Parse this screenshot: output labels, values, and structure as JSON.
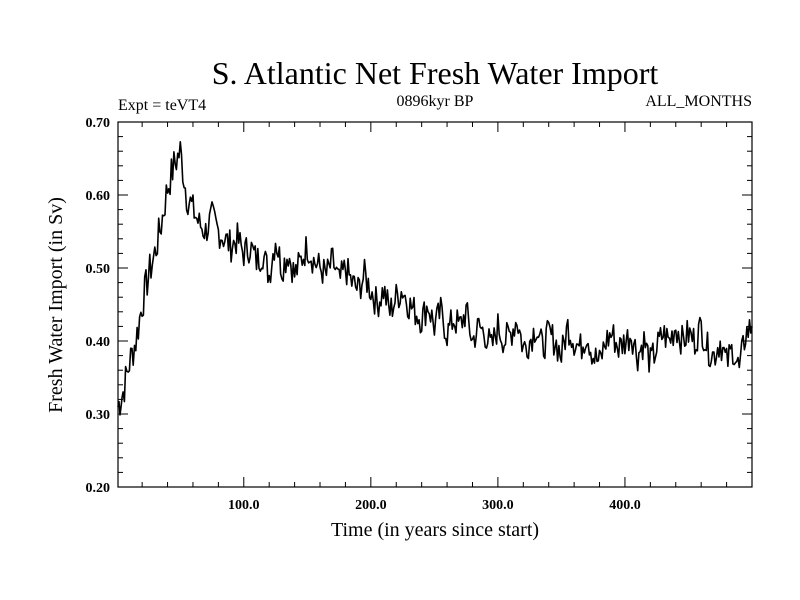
{
  "chart_data": {
    "type": "line",
    "title": "S. Atlantic Net Fresh Water Import",
    "subtitle_left": "Expt = teVT4",
    "subtitle_center": "0896kyr BP",
    "subtitle_right": "ALL_MONTHS",
    "xlabel": "Time (in years since start)",
    "ylabel": "Fresh Water Import (in Sv)",
    "xlim": [
      1,
      500
    ],
    "ylim": [
      0.2,
      0.7
    ],
    "xticks": [
      100,
      200,
      300,
      400
    ],
    "xtick_labels": [
      "100.0",
      "200.0",
      "300.0",
      "400.0"
    ],
    "yticks": [
      0.2,
      0.3,
      0.4,
      0.5,
      0.6,
      0.7
    ],
    "ytick_labels": [
      "0.20",
      "0.30",
      "0.40",
      "0.50",
      "0.60",
      "0.70"
    ],
    "series": [
      {
        "name": "Net Fresh Water Import",
        "x": [
          1,
          5,
          10,
          15,
          20,
          25,
          30,
          35,
          40,
          45,
          50,
          55,
          60,
          65,
          70,
          75,
          80,
          85,
          90,
          95,
          100,
          105,
          110,
          115,
          120,
          125,
          130,
          135,
          140,
          145,
          150,
          155,
          160,
          165,
          170,
          175,
          180,
          185,
          190,
          195,
          200,
          205,
          210,
          215,
          220,
          225,
          230,
          235,
          240,
          245,
          250,
          255,
          260,
          265,
          270,
          275,
          280,
          285,
          290,
          295,
          300,
          305,
          310,
          315,
          320,
          325,
          330,
          335,
          340,
          345,
          350,
          355,
          360,
          365,
          370,
          375,
          380,
          385,
          390,
          395,
          400,
          405,
          410,
          415,
          420,
          425,
          430,
          435,
          440,
          445,
          450,
          455,
          460,
          465,
          470,
          475,
          480,
          485,
          490,
          495,
          500
        ],
        "values": [
          0.31,
          0.33,
          0.37,
          0.4,
          0.45,
          0.49,
          0.52,
          0.56,
          0.61,
          0.64,
          0.66,
          0.6,
          0.58,
          0.56,
          0.55,
          0.57,
          0.55,
          0.54,
          0.53,
          0.54,
          0.52,
          0.53,
          0.51,
          0.52,
          0.49,
          0.54,
          0.5,
          0.52,
          0.49,
          0.51,
          0.53,
          0.51,
          0.5,
          0.49,
          0.51,
          0.48,
          0.5,
          0.48,
          0.47,
          0.49,
          0.47,
          0.45,
          0.47,
          0.44,
          0.46,
          0.47,
          0.45,
          0.44,
          0.43,
          0.45,
          0.42,
          0.44,
          0.41,
          0.43,
          0.42,
          0.44,
          0.4,
          0.42,
          0.41,
          0.39,
          0.42,
          0.4,
          0.41,
          0.43,
          0.39,
          0.4,
          0.42,
          0.39,
          0.41,
          0.4,
          0.38,
          0.42,
          0.4,
          0.39,
          0.41,
          0.38,
          0.37,
          0.4,
          0.41,
          0.39,
          0.4,
          0.41,
          0.38,
          0.4,
          0.37,
          0.39,
          0.41,
          0.4,
          0.42,
          0.4,
          0.41,
          0.4,
          0.42,
          0.39,
          0.38,
          0.4,
          0.37,
          0.39,
          0.36,
          0.41,
          0.42
        ]
      }
    ]
  }
}
